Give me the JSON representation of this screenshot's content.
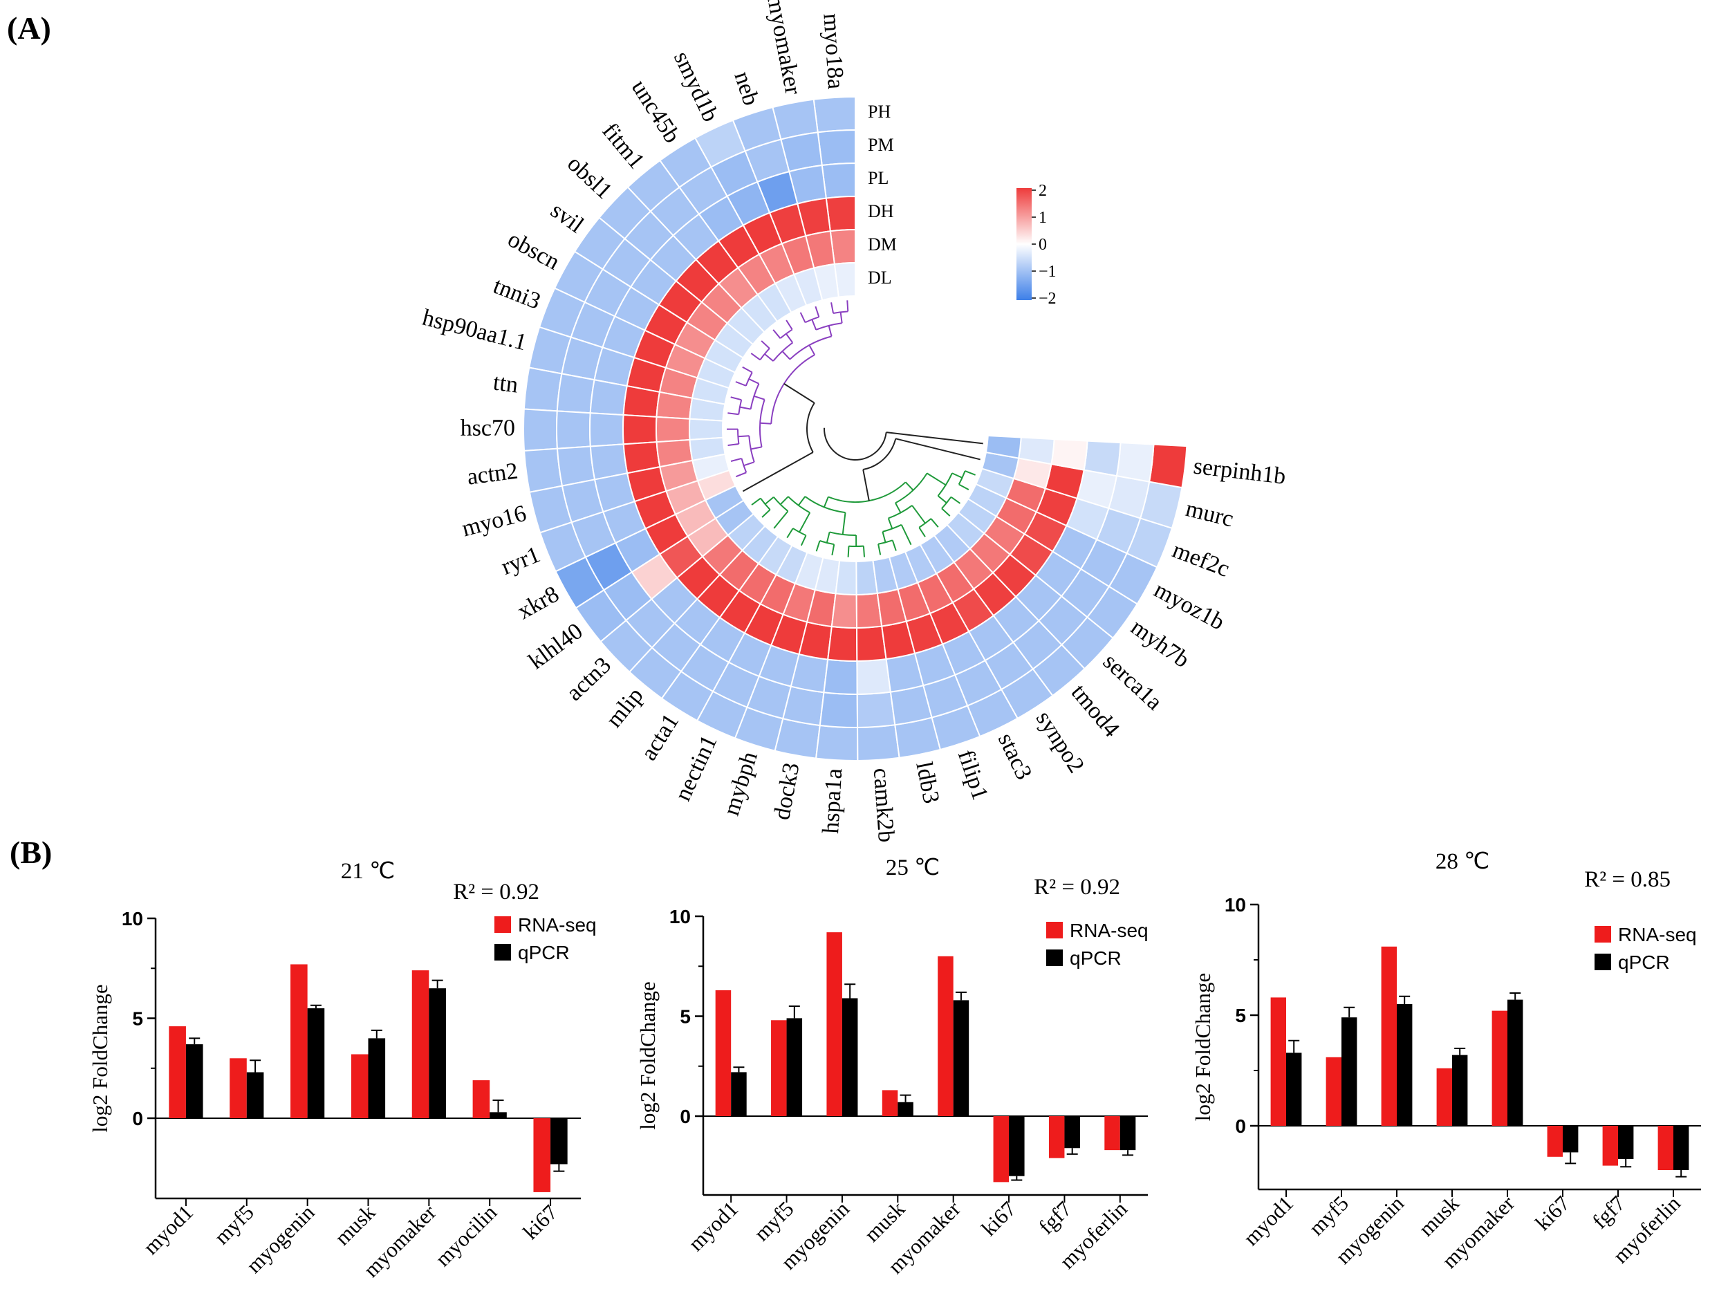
{
  "panel_a_label": "(A)",
  "panel_b_label": "(B)",
  "colors": {
    "high": "#ee3b3b",
    "low": "#3d7fe8",
    "mid": "#ffffff",
    "rna_seq": "#ee1c1c",
    "qpcr": "#000000"
  },
  "chart_data": [
    {
      "type": "heatmap",
      "layout": "circular",
      "rows": [
        "PH",
        "PM",
        "PL",
        "DH",
        "DM",
        "DL"
      ],
      "genes": [
        "myo18a",
        "myomaker",
        "neb",
        "smyd1b",
        "unc45b",
        "fitm1",
        "obsl1",
        "svil",
        "obscn",
        "tnni3",
        "hsp90aa1.1",
        "ttn",
        "hsc70",
        "actn2",
        "myo16",
        "ryr1",
        "xkr8",
        "klhl40",
        "actn3",
        "mlip",
        "acta1",
        "nectin1",
        "mybph",
        "dock3",
        "hspa1a",
        "camk2b",
        "ldb3",
        "filip1",
        "stac3",
        "synpo2",
        "tmod4",
        "serca1a",
        "myh7b",
        "myoz1b",
        "mef2c",
        "murc",
        "serpinh1b"
      ],
      "values": [
        [
          -0.8,
          -0.9,
          -0.9,
          1.7,
          1.1,
          -0.2
        ],
        [
          -0.8,
          -0.9,
          -0.9,
          1.7,
          1.2,
          -0.2
        ],
        [
          -0.8,
          -0.8,
          -1.3,
          1.7,
          1.2,
          -0.3
        ],
        [
          -0.6,
          -0.9,
          -1.0,
          1.8,
          1.1,
          -0.3
        ],
        [
          -0.8,
          -0.8,
          -0.9,
          1.8,
          1.1,
          -0.4
        ],
        [
          -0.8,
          -0.8,
          -0.8,
          1.8,
          1.0,
          -0.4
        ],
        [
          -0.8,
          -0.8,
          -0.8,
          1.8,
          1.1,
          -0.4
        ],
        [
          -0.8,
          -0.8,
          -0.8,
          1.8,
          1.1,
          -0.4
        ],
        [
          -0.8,
          -0.8,
          -0.8,
          1.8,
          1.0,
          -0.4
        ],
        [
          -0.8,
          -0.8,
          -0.8,
          1.8,
          1.0,
          -0.4
        ],
        [
          -0.8,
          -0.8,
          -0.8,
          1.8,
          1.1,
          -0.4
        ],
        [
          -0.8,
          -0.8,
          -0.8,
          1.8,
          1.1,
          -0.4
        ],
        [
          -0.8,
          -0.8,
          -0.8,
          1.8,
          1.1,
          -0.4
        ],
        [
          -0.8,
          -0.8,
          -0.8,
          1.8,
          1.1,
          -0.4
        ],
        [
          -0.8,
          -0.8,
          -0.8,
          1.8,
          0.9,
          -0.2
        ],
        [
          -0.8,
          -0.8,
          -0.8,
          1.8,
          0.7,
          0.3
        ],
        [
          -1.2,
          -1.3,
          -0.9,
          1.8,
          0.6,
          -0.8
        ],
        [
          -0.9,
          -0.9,
          0.4,
          1.5,
          0.6,
          -0.8
        ],
        [
          -0.8,
          -0.8,
          -0.8,
          1.8,
          1.2,
          -0.6
        ],
        [
          -0.8,
          -0.8,
          -0.8,
          1.8,
          1.3,
          -0.6
        ],
        [
          -0.8,
          -0.8,
          -0.8,
          1.8,
          1.3,
          -0.5
        ],
        [
          -0.8,
          -0.8,
          -0.8,
          1.8,
          1.3,
          -0.5
        ],
        [
          -0.8,
          -0.8,
          -0.8,
          1.8,
          1.2,
          -0.3
        ],
        [
          -0.8,
          -0.8,
          -0.8,
          1.8,
          1.3,
          -0.3
        ],
        [
          -0.8,
          -0.9,
          -0.9,
          1.8,
          1.0,
          -0.4
        ],
        [
          -0.8,
          -0.7,
          -0.3,
          1.8,
          1.2,
          -0.6
        ],
        [
          -0.8,
          -0.8,
          -0.8,
          1.8,
          1.3,
          -0.7
        ],
        [
          -0.8,
          -0.8,
          -0.8,
          1.7,
          1.3,
          -0.7
        ],
        [
          -0.8,
          -0.8,
          -0.8,
          1.7,
          1.3,
          -0.7
        ],
        [
          -0.8,
          -0.8,
          -0.8,
          1.6,
          1.3,
          -0.7
        ],
        [
          -0.8,
          -0.8,
          -0.8,
          1.7,
          1.2,
          -0.7
        ],
        [
          -0.8,
          -0.8,
          -0.8,
          1.7,
          1.2,
          -0.6
        ],
        [
          -0.8,
          -0.8,
          -0.8,
          1.6,
          1.2,
          -0.6
        ],
        [
          -0.8,
          -0.8,
          -0.8,
          1.6,
          1.3,
          -0.6
        ],
        [
          -0.6,
          -0.6,
          -0.4,
          1.7,
          1.3,
          -0.5
        ],
        [
          -0.5,
          -0.3,
          -0.2,
          1.8,
          0.2,
          -0.8
        ],
        [
          1.9,
          -0.2,
          -0.5,
          0.1,
          -0.3,
          -0.9
        ]
      ],
      "colorbar": {
        "min": -2,
        "max": 2,
        "ticks": [
          "2",
          "1",
          "0",
          "−1",
          "−2"
        ]
      }
    },
    {
      "type": "bar",
      "title": "21 ℃",
      "r2_text": "R² = 0.92",
      "ylabel": "log2 FoldChange",
      "ylim": [
        -3.7,
        10
      ],
      "yticks": [
        "10",
        "5",
        "0"
      ],
      "categories": [
        "myod1",
        "myf5",
        "myogenin",
        "musk",
        "myomaker",
        "myocilin",
        "ki67"
      ],
      "series": [
        {
          "name": "RNA-seq",
          "values": [
            4.6,
            3.0,
            7.7,
            3.2,
            7.4,
            1.9,
            -3.7
          ]
        },
        {
          "name": "qPCR",
          "values": [
            3.7,
            2.3,
            5.5,
            4.0,
            6.5,
            0.3,
            -2.3
          ]
        }
      ],
      "qpcr_error": [
        0.3,
        0.6,
        0.15,
        0.4,
        0.4,
        0.6,
        0.35
      ]
    },
    {
      "type": "bar",
      "title": "25 ℃",
      "r2_text": "R² = 0.92",
      "ylabel": "log2 FoldChange",
      "ylim": [
        -3.9,
        10
      ],
      "yticks": [
        "10",
        "5",
        "0"
      ],
      "categories": [
        "myod1",
        "myf5",
        "myogenin",
        "musk",
        "myomaker",
        "ki67",
        "fgf7",
        "myoferlin"
      ],
      "series": [
        {
          "name": "RNA-seq",
          "values": [
            6.3,
            4.8,
            9.2,
            1.3,
            8.0,
            -3.3,
            -2.1,
            -1.7
          ]
        },
        {
          "name": "qPCR",
          "values": [
            2.2,
            4.9,
            5.9,
            0.7,
            5.8,
            -3.0,
            -1.6,
            -1.7
          ]
        }
      ],
      "qpcr_error": [
        0.25,
        0.6,
        0.7,
        0.35,
        0.4,
        0.2,
        0.3,
        0.25
      ]
    },
    {
      "type": "bar",
      "title": "28 ℃",
      "r2_text": "R² = 0.85",
      "ylabel": "log2 FoldChange",
      "ylim": [
        -3.0,
        10
      ],
      "yticks": [
        "10",
        "5",
        "0"
      ],
      "categories": [
        "myod1",
        "myf5",
        "myogenin",
        "musk",
        "myomaker",
        "ki67",
        "fgf7",
        "myoferlin"
      ],
      "series": [
        {
          "name": "RNA-seq",
          "values": [
            5.8,
            3.1,
            8.1,
            2.6,
            5.2,
            -1.4,
            -1.8,
            -2.0
          ]
        },
        {
          "name": "qPCR",
          "values": [
            3.3,
            4.9,
            5.5,
            3.2,
            5.7,
            -1.2,
            -1.5,
            -2.0
          ]
        }
      ],
      "qpcr_error": [
        0.55,
        0.45,
        0.35,
        0.3,
        0.3,
        0.5,
        0.35,
        0.3
      ]
    }
  ]
}
